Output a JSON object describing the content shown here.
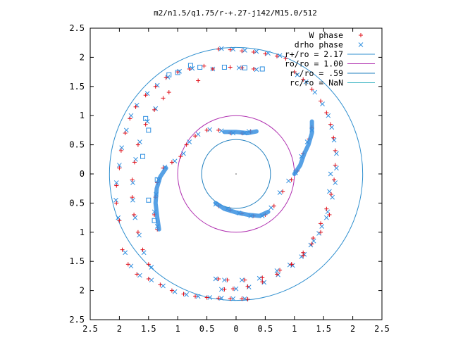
{
  "chart_data": {
    "type": "scatter",
    "title": "m2/n1.5/q1.75/r-+.27-j142/M15.0/512",
    "xlabel": "",
    "ylabel": "",
    "xlim": [
      -2.5,
      2.5
    ],
    "ylim": [
      -2.5,
      2.5
    ],
    "x_ticks": [
      -2.5,
      -2,
      -1.5,
      -1,
      -0.5,
      0,
      0.5,
      1,
      1.5,
      2,
      2.5
    ],
    "x_tick_labels": [
      "2.5",
      "2",
      "1.5",
      "1",
      "0.5",
      "0",
      "0.5",
      "1",
      "1.5",
      "2",
      "2.5"
    ],
    "y_ticks": [
      2.5,
      2,
      1.5,
      1,
      0.5,
      0,
      -0.5,
      -1,
      -1.5,
      -2,
      -2.5
    ],
    "y_tick_labels": [
      "2.5",
      "2",
      "1.5",
      "1",
      "0.5",
      "0",
      "0.5",
      "1",
      "1.5",
      "2",
      "2.5"
    ],
    "grid": false,
    "legend_position": "top-right",
    "legend": [
      {
        "label": "W phase",
        "marker": "plus",
        "color": "#e0101a"
      },
      {
        "label": "drho phase",
        "marker": "cross",
        "color": "#2f8fe0"
      },
      {
        "label": "r+/ro = 2.17",
        "marker": "line",
        "color": "#2f8fcf"
      },
      {
        "label": "ro/ro = 1.00",
        "marker": "line",
        "color": "#b030b0"
      },
      {
        "label": "r-/ro = .59",
        "marker": "line",
        "color": "#1f7fbf"
      },
      {
        "label": "rc/ro = NaN",
        "marker": "line",
        "color": "#30b0c0"
      }
    ],
    "circles": [
      {
        "name": "r+/ro = 2.17",
        "r": 2.17,
        "color": "#2f8fcf"
      },
      {
        "name": "ro/ro = 1.00",
        "r": 1.0,
        "color": "#b030b0"
      },
      {
        "name": "r-/ro = .59",
        "r": 0.59,
        "color": "#1f7fbf"
      }
    ],
    "series": [
      {
        "name": "W phase",
        "marker": "plus",
        "color": "#e0101a",
        "points": [
          [
            -0.3,
            2.14
          ],
          [
            -0.1,
            2.13
          ],
          [
            0.1,
            2.11
          ],
          [
            0.3,
            2.09
          ],
          [
            0.5,
            2.06
          ],
          [
            0.7,
            2.02
          ],
          [
            0.85,
            1.98
          ],
          [
            1.0,
            1.75
          ],
          [
            1.15,
            1.62
          ],
          [
            1.3,
            1.45
          ],
          [
            1.45,
            1.25
          ],
          [
            1.55,
            1.05
          ],
          [
            1.62,
            0.85
          ],
          [
            1.67,
            0.62
          ],
          [
            1.7,
            0.4
          ],
          [
            1.7,
            0.15
          ],
          [
            1.68,
            -0.1
          ],
          [
            1.63,
            -0.35
          ],
          [
            1.55,
            -0.6
          ],
          [
            1.45,
            -0.85
          ],
          [
            1.32,
            -1.1
          ],
          [
            1.15,
            -1.35
          ],
          [
            0.95,
            -1.55
          ],
          [
            0.7,
            -1.72
          ],
          [
            0.45,
            -1.85
          ],
          [
            0.2,
            -1.93
          ],
          [
            -0.05,
            -1.97
          ],
          [
            -0.2,
            -1.98
          ],
          [
            1.3,
            0.8
          ],
          [
            1.25,
            0.6
          ],
          [
            1.15,
            0.35
          ],
          [
            1.05,
            0.05
          ],
          [
            0.95,
            -0.1
          ],
          [
            0.8,
            -0.3
          ],
          [
            0.65,
            -0.55
          ],
          [
            0.5,
            -0.7
          ],
          [
            0.3,
            -0.72
          ],
          [
            0.1,
            -0.68
          ],
          [
            -0.1,
            -0.62
          ],
          [
            -0.3,
            -0.55
          ],
          [
            -1.35,
            -0.95
          ],
          [
            -1.4,
            -0.7
          ],
          [
            -1.38,
            -0.4
          ],
          [
            -1.35,
            -0.15
          ],
          [
            -1.25,
            0.1
          ],
          [
            -1.1,
            0.2
          ],
          [
            -0.95,
            0.3
          ],
          [
            -0.85,
            0.5
          ],
          [
            -0.7,
            0.65
          ],
          [
            -0.5,
            0.75
          ],
          [
            -0.3,
            0.75
          ],
          [
            -0.1,
            0.7
          ],
          [
            0.1,
            0.7
          ],
          [
            0.25,
            0.72
          ],
          [
            -1.95,
            -1.3
          ],
          [
            -1.85,
            -1.55
          ],
          [
            -1.7,
            -1.72
          ],
          [
            -1.5,
            -1.8
          ],
          [
            -1.3,
            -1.9
          ],
          [
            -1.1,
            -2.0
          ],
          [
            -0.9,
            -2.06
          ],
          [
            -0.7,
            -2.1
          ],
          [
            -0.5,
            -2.12
          ],
          [
            -0.3,
            -2.13
          ],
          [
            -0.1,
            -2.14
          ],
          [
            0.1,
            -2.14
          ],
          [
            0.2,
            -2.15
          ],
          [
            -2.0,
            -0.8
          ],
          [
            -2.05,
            -0.5
          ],
          [
            -2.05,
            -0.2
          ],
          [
            -2.0,
            0.1
          ],
          [
            -1.97,
            0.4
          ],
          [
            -1.9,
            0.7
          ],
          [
            -1.82,
            0.95
          ],
          [
            -1.72,
            1.15
          ],
          [
            -1.55,
            1.35
          ],
          [
            -1.38,
            1.5
          ],
          [
            -1.2,
            1.65
          ],
          [
            -1.0,
            1.75
          ],
          [
            -0.8,
            1.8
          ],
          [
            -0.55,
            1.85
          ],
          [
            -1.5,
            -1.55
          ],
          [
            -1.6,
            -1.3
          ],
          [
            -1.68,
            -1.0
          ],
          [
            -1.75,
            -0.7
          ],
          [
            -1.78,
            -0.4
          ],
          [
            -1.78,
            -0.1
          ],
          [
            -1.74,
            0.2
          ],
          [
            -1.68,
            0.5
          ],
          [
            -1.55,
            0.85
          ],
          [
            -1.4,
            1.1
          ],
          [
            -1.25,
            1.3
          ],
          [
            -1.15,
            1.4
          ],
          [
            -0.65,
            1.6
          ],
          [
            -0.4,
            1.8
          ],
          [
            0.3,
            1.8
          ],
          [
            0.1,
            1.82
          ],
          [
            -0.1,
            1.83
          ],
          [
            1.6,
            -0.7
          ],
          [
            1.45,
            -1.0
          ],
          [
            1.3,
            -1.2
          ],
          [
            1.15,
            -1.4
          ],
          [
            0.95,
            -1.55
          ],
          [
            0.75,
            -1.65
          ],
          [
            0.45,
            -1.78
          ],
          [
            0.15,
            -1.82
          ],
          [
            -0.15,
            -1.82
          ],
          [
            -0.3,
            -1.8
          ]
        ]
      },
      {
        "name": "drho phase",
        "marker": "cross",
        "color": "#2f8fe0",
        "points": [
          [
            -0.25,
            2.15
          ],
          [
            -0.05,
            2.14
          ],
          [
            0.15,
            2.12
          ],
          [
            0.35,
            2.1
          ],
          [
            0.55,
            2.07
          ],
          [
            0.75,
            2.03
          ],
          [
            1.05,
            1.7
          ],
          [
            1.2,
            1.58
          ],
          [
            1.35,
            1.4
          ],
          [
            1.48,
            1.2
          ],
          [
            1.58,
            1.0
          ],
          [
            1.64,
            0.8
          ],
          [
            1.68,
            0.58
          ],
          [
            1.72,
            0.35
          ],
          [
            1.72,
            0.1
          ],
          [
            1.7,
            -0.15
          ],
          [
            1.65,
            -0.4
          ],
          [
            1.57,
            -0.65
          ],
          [
            1.47,
            -0.9
          ],
          [
            1.33,
            -1.15
          ],
          [
            1.17,
            -1.38
          ],
          [
            0.97,
            -1.57
          ],
          [
            0.72,
            -1.73
          ],
          [
            0.48,
            -1.86
          ],
          [
            0.22,
            -1.94
          ],
          [
            0.0,
            -1.97
          ],
          [
            -0.25,
            -1.98
          ],
          [
            1.3,
            0.75
          ],
          [
            1.22,
            0.55
          ],
          [
            1.12,
            0.3
          ],
          [
            1.02,
            0.02
          ],
          [
            0.9,
            -0.12
          ],
          [
            0.75,
            -0.32
          ],
          [
            0.6,
            -0.58
          ],
          [
            0.45,
            -0.72
          ],
          [
            0.25,
            -0.72
          ],
          [
            0.05,
            -0.67
          ],
          [
            -0.15,
            -0.6
          ],
          [
            -0.35,
            -0.52
          ],
          [
            -1.35,
            -0.9
          ],
          [
            -1.4,
            -0.65
          ],
          [
            -1.37,
            -0.35
          ],
          [
            -1.33,
            -0.1
          ],
          [
            -1.22,
            0.12
          ],
          [
            -1.05,
            0.22
          ],
          [
            -0.9,
            0.35
          ],
          [
            -0.8,
            0.55
          ],
          [
            -0.65,
            0.68
          ],
          [
            -0.45,
            0.76
          ],
          [
            -0.25,
            0.74
          ],
          [
            -0.05,
            0.7
          ],
          [
            0.15,
            0.7
          ],
          [
            0.22,
            0.73
          ],
          [
            -1.9,
            -1.35
          ],
          [
            -1.8,
            -1.58
          ],
          [
            -1.65,
            -1.74
          ],
          [
            -1.45,
            -1.82
          ],
          [
            -1.25,
            -1.92
          ],
          [
            -1.05,
            -2.02
          ],
          [
            -0.85,
            -2.07
          ],
          [
            -0.65,
            -2.1
          ],
          [
            -0.45,
            -2.12
          ],
          [
            -0.25,
            -2.13
          ],
          [
            -0.05,
            -2.14
          ],
          [
            0.15,
            -2.14
          ],
          [
            -2.02,
            -0.75
          ],
          [
            -2.06,
            -0.45
          ],
          [
            -2.05,
            -0.15
          ],
          [
            -2.0,
            0.15
          ],
          [
            -1.96,
            0.45
          ],
          [
            -1.88,
            0.75
          ],
          [
            -1.8,
            1.0
          ],
          [
            -1.7,
            1.18
          ],
          [
            -1.52,
            1.38
          ],
          [
            -1.35,
            1.52
          ],
          [
            -1.17,
            1.66
          ],
          [
            -0.97,
            1.76
          ],
          [
            -0.75,
            1.81
          ],
          [
            -1.45,
            -1.6
          ],
          [
            -1.58,
            -1.35
          ],
          [
            -1.66,
            -1.05
          ],
          [
            -1.73,
            -0.75
          ],
          [
            -1.77,
            -0.45
          ],
          [
            -1.77,
            -0.15
          ],
          [
            -1.72,
            0.25
          ],
          [
            -1.65,
            0.55
          ],
          [
            -1.52,
            0.9
          ],
          [
            -1.38,
            1.12
          ],
          [
            -0.4,
            1.8
          ],
          [
            0.35,
            1.79
          ],
          [
            0.05,
            1.82
          ],
          [
            1.55,
            -0.75
          ],
          [
            1.42,
            -1.02
          ],
          [
            1.28,
            -1.22
          ],
          [
            1.12,
            -1.42
          ],
          [
            0.92,
            -1.56
          ],
          [
            0.7,
            -1.66
          ],
          [
            0.4,
            -1.79
          ],
          [
            0.1,
            -1.82
          ],
          [
            -0.2,
            -1.82
          ],
          [
            -0.35,
            -1.8
          ],
          [
            1.62,
            0.0
          ],
          [
            1.6,
            -0.3
          ]
        ]
      }
    ],
    "extra_square_markers": [
      [
        -0.78,
        1.86
      ],
      [
        -0.62,
        1.83
      ],
      [
        -1.0,
        1.74
      ],
      [
        -1.15,
        1.7
      ],
      [
        -1.55,
        0.95
      ],
      [
        -1.5,
        0.75
      ],
      [
        -1.6,
        0.3
      ],
      [
        -1.35,
        -0.1
      ],
      [
        -1.5,
        -0.45
      ],
      [
        -1.4,
        -0.8
      ],
      [
        0.15,
        1.82
      ],
      [
        -0.2,
        1.83
      ],
      [
        0.45,
        1.8
      ]
    ]
  }
}
